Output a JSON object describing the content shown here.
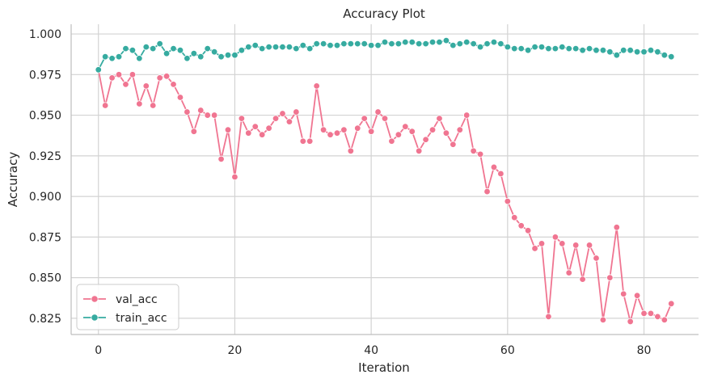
{
  "chart_data": {
    "type": "line",
    "title": "Accuracy Plot",
    "xlabel": "Iteration",
    "ylabel": "Accuracy",
    "xlim": [
      -4,
      88
    ],
    "ylim": [
      0.815,
      1.006
    ],
    "xticks": [
      0,
      20,
      40,
      60,
      80
    ],
    "yticks": [
      0.825,
      0.85,
      0.875,
      0.9,
      0.925,
      0.95,
      0.975,
      1.0
    ],
    "ytick_labels": [
      "0.825",
      "0.850",
      "0.875",
      "0.900",
      "0.925",
      "0.950",
      "0.975",
      "1.000"
    ],
    "grid": true,
    "legend_position": "lower-left",
    "series": [
      {
        "name": "val_acc",
        "color": "#f07591",
        "values": [
          0.978,
          0.956,
          0.973,
          0.975,
          0.969,
          0.975,
          0.957,
          0.968,
          0.956,
          0.973,
          0.974,
          0.969,
          0.961,
          0.952,
          0.94,
          0.953,
          0.95,
          0.95,
          0.923,
          0.941,
          0.912,
          0.948,
          0.939,
          0.943,
          0.938,
          0.942,
          0.948,
          0.951,
          0.946,
          0.952,
          0.934,
          0.934,
          0.968,
          0.941,
          0.938,
          0.939,
          0.941,
          0.928,
          0.942,
          0.948,
          0.94,
          0.952,
          0.948,
          0.934,
          0.938,
          0.943,
          0.94,
          0.928,
          0.935,
          0.941,
          0.948,
          0.939,
          0.932,
          0.941,
          0.95,
          0.928,
          0.926,
          0.903,
          0.918,
          0.914,
          0.897,
          0.887,
          0.882,
          0.879,
          0.868,
          0.871,
          0.826,
          0.875,
          0.871,
          0.853,
          0.87,
          0.849,
          0.87,
          0.862,
          0.824,
          0.85,
          0.881,
          0.84,
          0.823,
          0.839,
          0.828,
          0.828,
          0.826,
          0.824,
          0.834
        ]
      },
      {
        "name": "train_acc",
        "color": "#36aba0",
        "values": [
          0.978,
          0.986,
          0.985,
          0.986,
          0.991,
          0.99,
          0.985,
          0.992,
          0.991,
          0.994,
          0.988,
          0.991,
          0.99,
          0.985,
          0.988,
          0.986,
          0.991,
          0.989,
          0.986,
          0.987,
          0.987,
          0.99,
          0.992,
          0.993,
          0.991,
          0.992,
          0.992,
          0.992,
          0.992,
          0.991,
          0.993,
          0.991,
          0.994,
          0.994,
          0.993,
          0.993,
          0.994,
          0.994,
          0.994,
          0.994,
          0.993,
          0.993,
          0.995,
          0.994,
          0.994,
          0.995,
          0.995,
          0.994,
          0.994,
          0.995,
          0.995,
          0.996,
          0.993,
          0.994,
          0.995,
          0.994,
          0.992,
          0.994,
          0.995,
          0.994,
          0.992,
          0.991,
          0.991,
          0.99,
          0.992,
          0.992,
          0.991,
          0.991,
          0.992,
          0.991,
          0.991,
          0.99,
          0.991,
          0.99,
          0.99,
          0.989,
          0.987,
          0.99,
          0.99,
          0.989,
          0.989,
          0.99,
          0.989,
          0.987,
          0.986
        ]
      }
    ]
  }
}
